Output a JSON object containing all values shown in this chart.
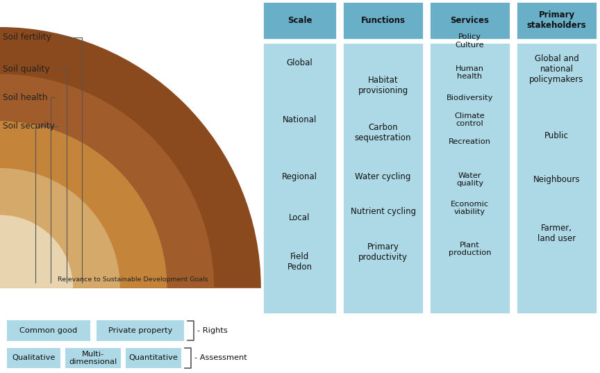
{
  "bg_color": "#ffffff",
  "arc_colors": [
    "#8B4A1E",
    "#A05C2A",
    "#C4843A",
    "#D4A96A",
    "#E8D5B0"
  ],
  "arc_radii": [
    1.0,
    0.82,
    0.64,
    0.46,
    0.28
  ],
  "soil_labels": [
    "Soil fertility",
    "Soil quality",
    "Soil health",
    "Soil security"
  ],
  "scale_items": [
    "Global",
    "National",
    "Regional",
    "Local",
    "Field\nPedon"
  ],
  "func_items": [
    "Habitat\nprovisioning",
    "Carbon\nsequestration",
    "Water cycling",
    "Nutrient cycling",
    "Primary\nproductivity"
  ],
  "serv_items": [
    "Policy\nCulture",
    "Human\nhealth",
    "Biodiversity",
    "Climate\ncontrol",
    "Recreation",
    "Water\nquality",
    "Economic\nviability",
    "Plant\nproduction"
  ],
  "stake_items": [
    "Global and\nnational\npolicymakers",
    "Public",
    "Neighbours",
    "Farmer,\nland user"
  ],
  "col_headers": [
    "Scale",
    "Functions",
    "Services",
    "Primary\nstakeholders"
  ],
  "light_blue": "#add8e6",
  "header_blue": "#6aafc8",
  "sdg_text": "Relevance to Sustainable Development Goals",
  "text_color": "#222222",
  "line_color": "#555555"
}
